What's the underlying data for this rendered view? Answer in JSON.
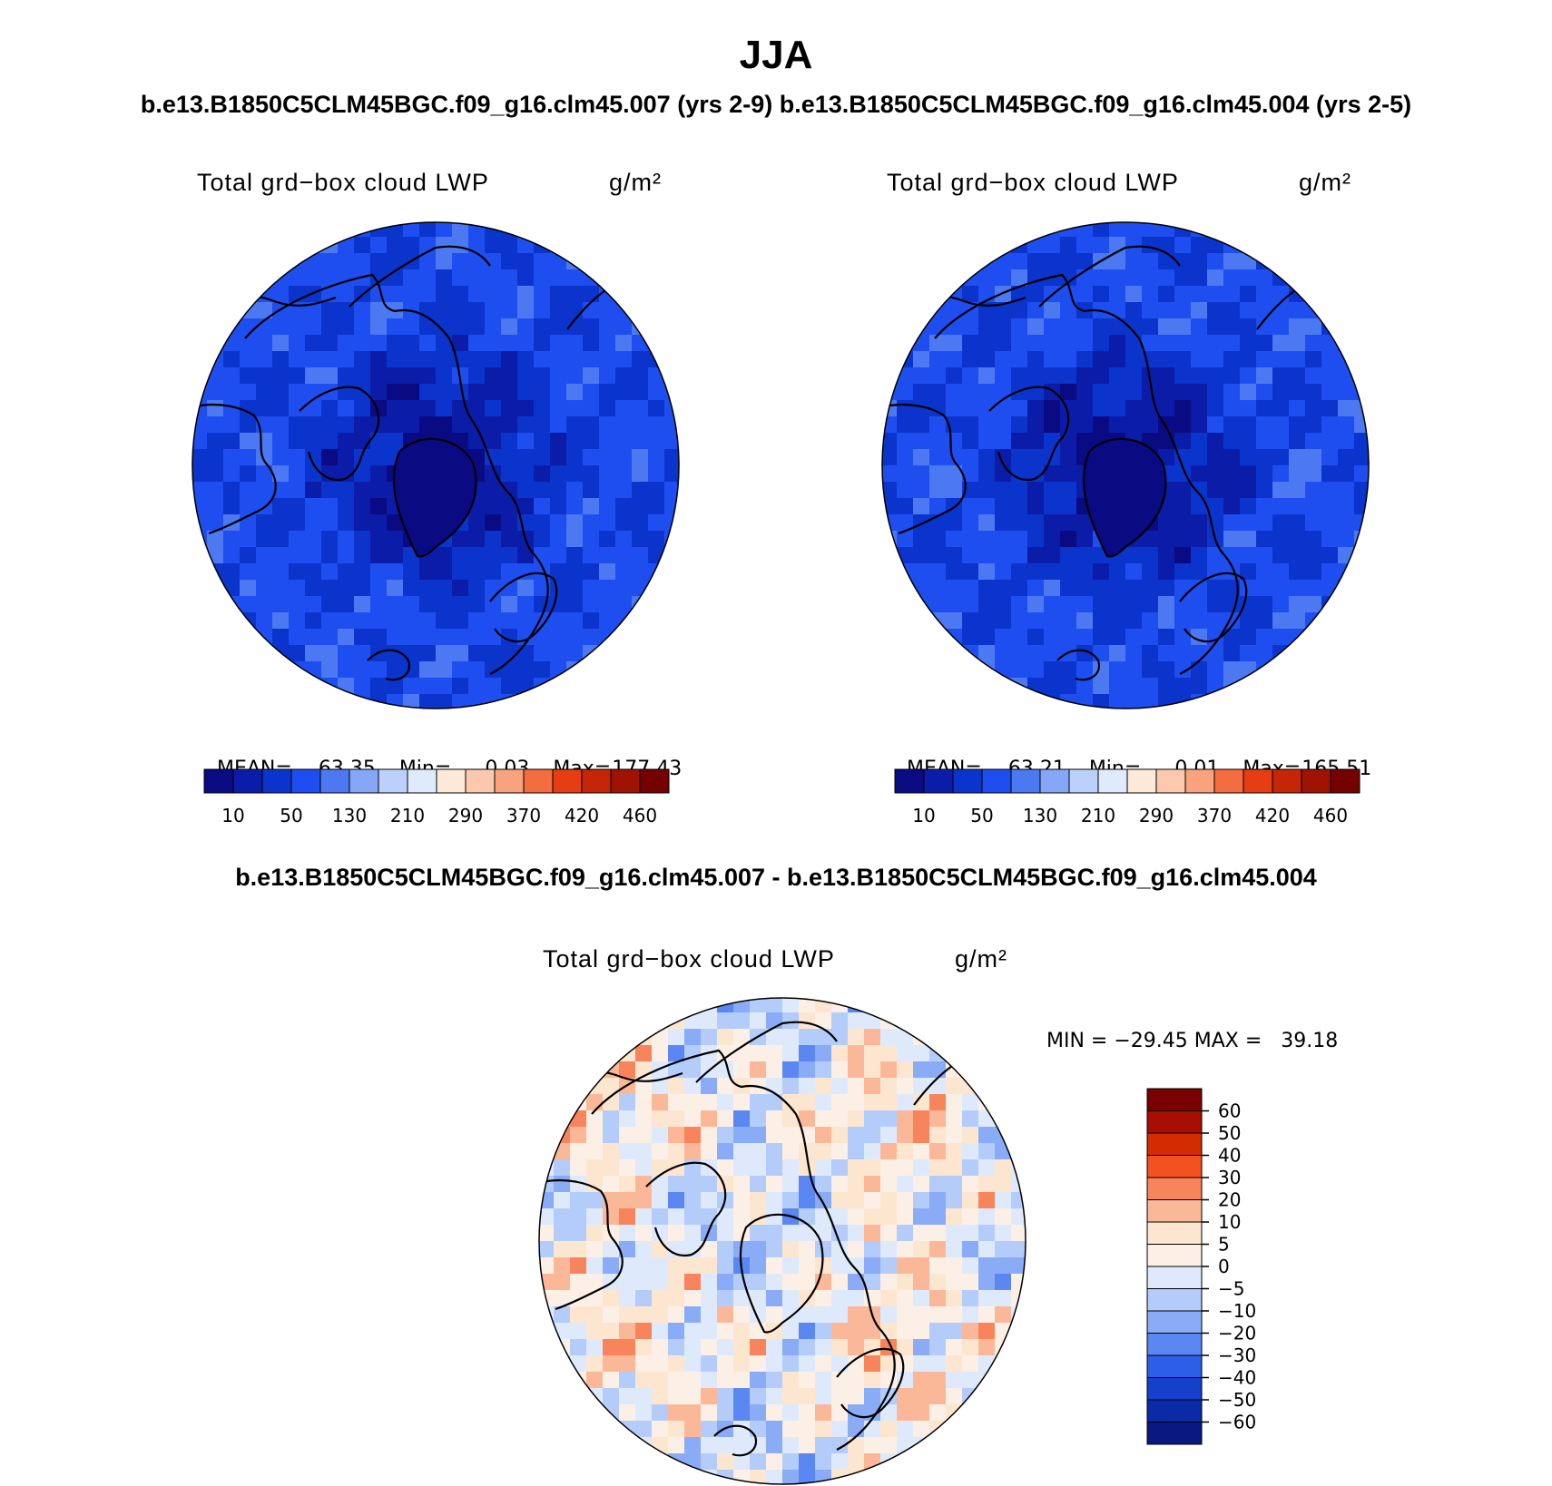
{
  "title": "JJA",
  "case_line": "b.e13.B1850C5CLM45BGC.f09_g16.clm45.007 (yrs 2-9) b.e13.B1850C5CLM45BGC.f09_g16.clm45.004 (yrs 2-5)",
  "panels": [
    {
      "variable": "Total grd−box cloud LWP",
      "units": "g/m²",
      "stats": {
        "mean_label": "MEAN=",
        "mean": "63.35",
        "min_label": "Min=",
        "min": "0.03",
        "max_label": "Max=",
        "max": "177.43"
      }
    },
    {
      "variable": "Total grd−box cloud LWP",
      "units": "g/m²",
      "stats": {
        "mean_label": "MEAN=",
        "mean": "63.21",
        "min_label": "Min=",
        "min": "0.01",
        "max_label": "Max=",
        "max": "165.51"
      }
    }
  ],
  "abs_colorbar": {
    "colors": [
      "#0a0a82",
      "#0b1da8",
      "#0b34cc",
      "#1f4ef0",
      "#4c79f2",
      "#86a7f7",
      "#bcd0fb",
      "#dfeafd",
      "#fde9d8",
      "#fcc9ae",
      "#f8a27e",
      "#f36d3f",
      "#e63d12",
      "#c42606",
      "#9f1300",
      "#740000"
    ],
    "labels": [
      "10",
      "50",
      "130",
      "210",
      "290",
      "370",
      "420",
      "460"
    ]
  },
  "diff": {
    "title": "b.e13.B1850C5CLM45BGC.f09_g16.clm45.007 - b.e13.B1850C5CLM45BGC.f09_g16.clm45.004",
    "variable": "Total grd−box cloud LWP",
    "units": "g/m²",
    "minmax": "MIN = −29.45 MAX =   39.18",
    "colorbar": {
      "colors_top_to_bottom": [
        "#7a0000",
        "#a80f00",
        "#d32c03",
        "#f55020",
        "#f8845b",
        "#fbb899",
        "#fde6d0",
        "#fcf0e6",
        "#deeafb",
        "#b4ccf9",
        "#8aacf6",
        "#5a87f1",
        "#2c5ee8",
        "#1540cc",
        "#0a2aa6",
        "#0a1882"
      ],
      "labels": [
        "60",
        "50",
        "40",
        "30",
        "20",
        "10",
        "5",
        "0",
        "−5",
        "−10",
        "−20",
        "−30",
        "−40",
        "−50",
        "−60"
      ]
    }
  }
}
